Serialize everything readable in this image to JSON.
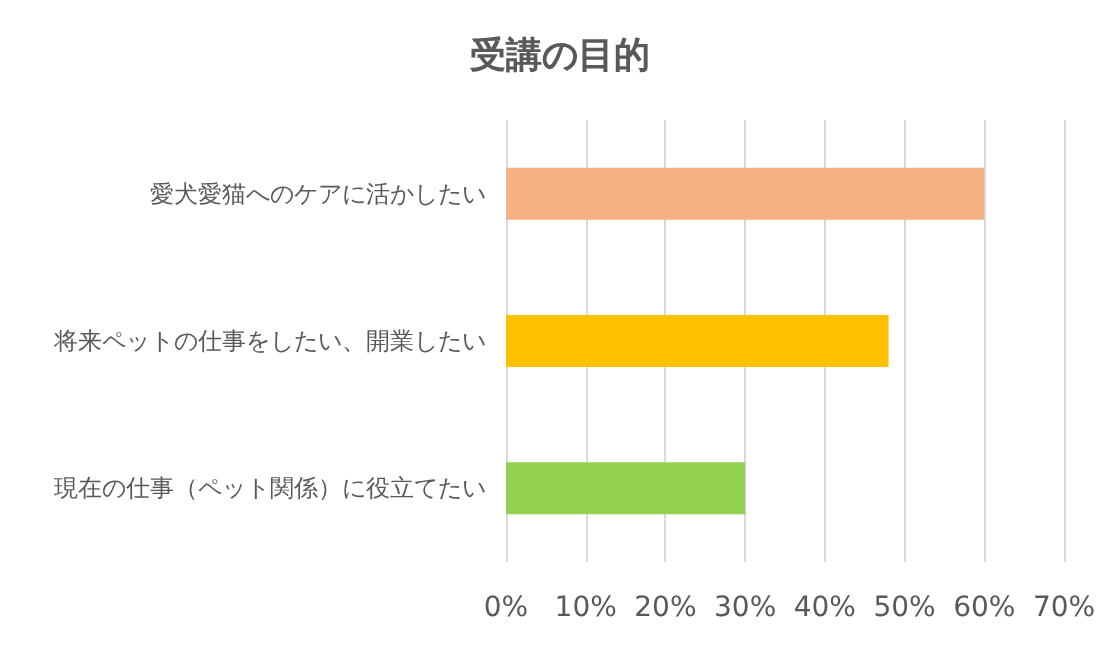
{
  "chart_data": {
    "type": "bar",
    "orientation": "horizontal",
    "title": "受講の目的",
    "categories": [
      "愛犬愛猫へのケアに活かしたい",
      "将来ペットの仕事をしたい、開業したい",
      "現在の仕事（ペット関係）に役立てたい"
    ],
    "values": [
      60,
      48,
      30
    ],
    "colors": [
      "#f4b183",
      "#ffc000",
      "#92d050"
    ],
    "xlim": [
      0,
      70
    ],
    "xticks": [
      {
        "value": 0,
        "label": "0%"
      },
      {
        "value": 10,
        "label": "10%"
      },
      {
        "value": 20,
        "label": "20%"
      },
      {
        "value": 30,
        "label": "30%"
      },
      {
        "value": 40,
        "label": "40%"
      },
      {
        "value": 50,
        "label": "50%"
      },
      {
        "value": 60,
        "label": "60%"
      },
      {
        "value": 70,
        "label": "70%"
      }
    ],
    "grid": "x"
  }
}
